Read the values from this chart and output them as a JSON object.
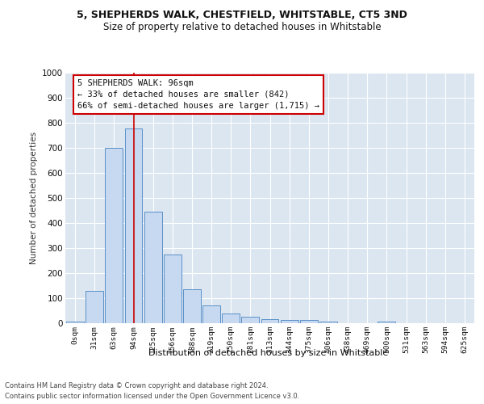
{
  "title_line1": "5, SHEPHERDS WALK, CHESTFIELD, WHITSTABLE, CT5 3ND",
  "title_line2": "Size of property relative to detached houses in Whitstable",
  "xlabel": "Distribution of detached houses by size in Whitstable",
  "ylabel": "Number of detached properties",
  "bar_labels": [
    "0sqm",
    "31sqm",
    "63sqm",
    "94sqm",
    "125sqm",
    "156sqm",
    "188sqm",
    "219sqm",
    "250sqm",
    "281sqm",
    "313sqm",
    "344sqm",
    "375sqm",
    "406sqm",
    "438sqm",
    "469sqm",
    "500sqm",
    "531sqm",
    "563sqm",
    "594sqm",
    "625sqm"
  ],
  "bar_values": [
    5,
    128,
    700,
    778,
    445,
    275,
    135,
    70,
    38,
    25,
    15,
    12,
    12,
    5,
    0,
    0,
    8,
    0,
    0,
    0,
    0
  ],
  "bar_color": "#c6d9f0",
  "bar_edge_color": "#5a90c8",
  "vline_x": 3,
  "vline_color": "#cc0000",
  "annotation_text": "5 SHEPHERDS WALK: 96sqm\n← 33% of detached houses are smaller (842)\n66% of semi-detached houses are larger (1,715) →",
  "annotation_box_color": "#ffffff",
  "annotation_box_edge": "#cc0000",
  "ylim": [
    0,
    1000
  ],
  "yticks": [
    0,
    100,
    200,
    300,
    400,
    500,
    600,
    700,
    800,
    900,
    1000
  ],
  "bg_color": "#dce6f1",
  "footer_line1": "Contains HM Land Registry data © Crown copyright and database right 2024.",
  "footer_line2": "Contains public sector information licensed under the Open Government Licence v3.0."
}
